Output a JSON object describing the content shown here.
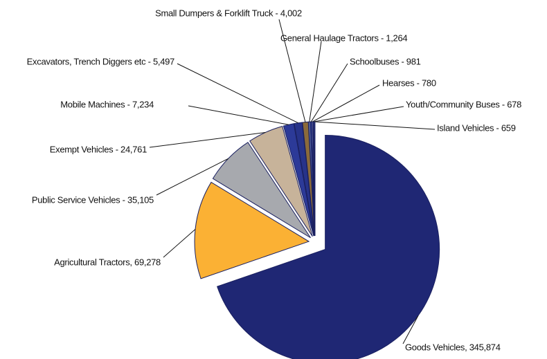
{
  "chart_data": {
    "type": "pie",
    "values": [
      345874,
      69278,
      35105,
      24761,
      7234,
      5497,
      4002,
      1264,
      981,
      780,
      678,
      659
    ],
    "value_labels": [
      "Goods Vehicles, 345,874",
      "Agricultural Tractors, 69,278",
      "Public Service Vehicles - 35,105",
      "Exempt Vehicles - 24,761",
      "Mobile Machines - 7,234",
      "Excavators, Trench Diggers etc - 5,497",
      "Small Dumpers & Forklift Truck - 4,002",
      "General Haulage Tractors - 1,264",
      "Schoolbuses - 981",
      "Hearses - 780",
      "Youth/Community Buses - 678",
      "Island Vehicles - 659"
    ],
    "colors": [
      "#1f2774",
      "#fbb134",
      "#a7a9ae",
      "#c7b39a",
      "#2c3a98",
      "#27338a",
      "#8b6a3a",
      "#5f6fa8",
      "#3c4aa0",
      "#8a93c4",
      "#2f3c96",
      "#4a58a8"
    ]
  }
}
